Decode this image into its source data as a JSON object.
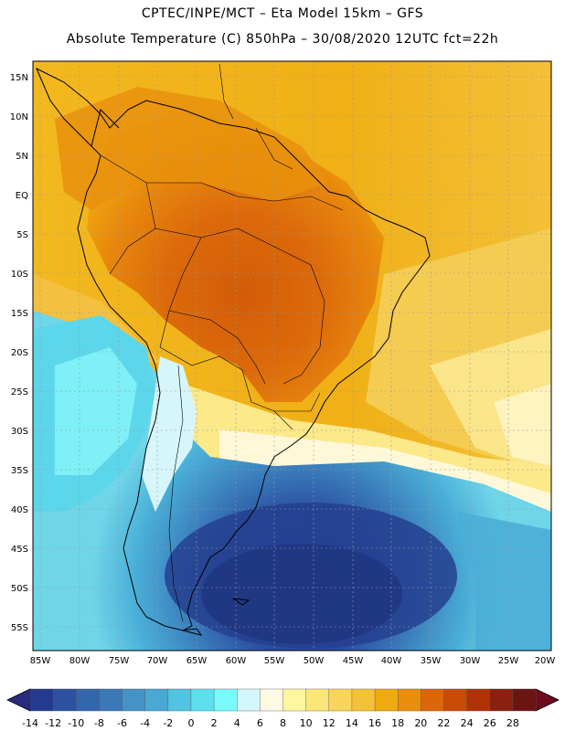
{
  "header": {
    "title_line1": "CPTEC/INPE/MCT –  Eta Model 15km – GFS",
    "title_line2": "Absolute Temperature (C) 850hPa – 30/08/2020 12UTC fct=22h"
  },
  "map": {
    "lat_labels": [
      "15N",
      "10N",
      "5N",
      "EQ",
      "5S",
      "10S",
      "15S",
      "20S",
      "25S",
      "30S",
      "35S",
      "40S",
      "45S",
      "50S",
      "55S"
    ],
    "lon_labels": [
      "85W",
      "80W",
      "75W",
      "70W",
      "65W",
      "60W",
      "55W",
      "50W",
      "45W",
      "40W",
      "35W",
      "30W",
      "25W",
      "20W"
    ]
  },
  "colorbar": {
    "labels": [
      "-14",
      "-12",
      "-10",
      "-8",
      "-6",
      "-4",
      "-2",
      "0",
      "2",
      "4",
      "6",
      "8",
      "10",
      "12",
      "14",
      "16",
      "18",
      "20",
      "22",
      "24",
      "26",
      "28"
    ],
    "colors": [
      "#253a8e",
      "#2d51a0",
      "#3366ad",
      "#3b78b8",
      "#4592c6",
      "#4aa8d3",
      "#52c3e0",
      "#5ee0ec",
      "#78fbfc",
      "#d4f7fb",
      "#fff9e3",
      "#fff6a0",
      "#fbe67a",
      "#f8d55a",
      "#f3c238",
      "#efaa10",
      "#e98f0c",
      "#dd650a",
      "#c94b05",
      "#b03206",
      "#8a2010",
      "#6b1512"
    ],
    "under_color": "#2a2a80",
    "over_color": "#6e0a1a"
  }
}
